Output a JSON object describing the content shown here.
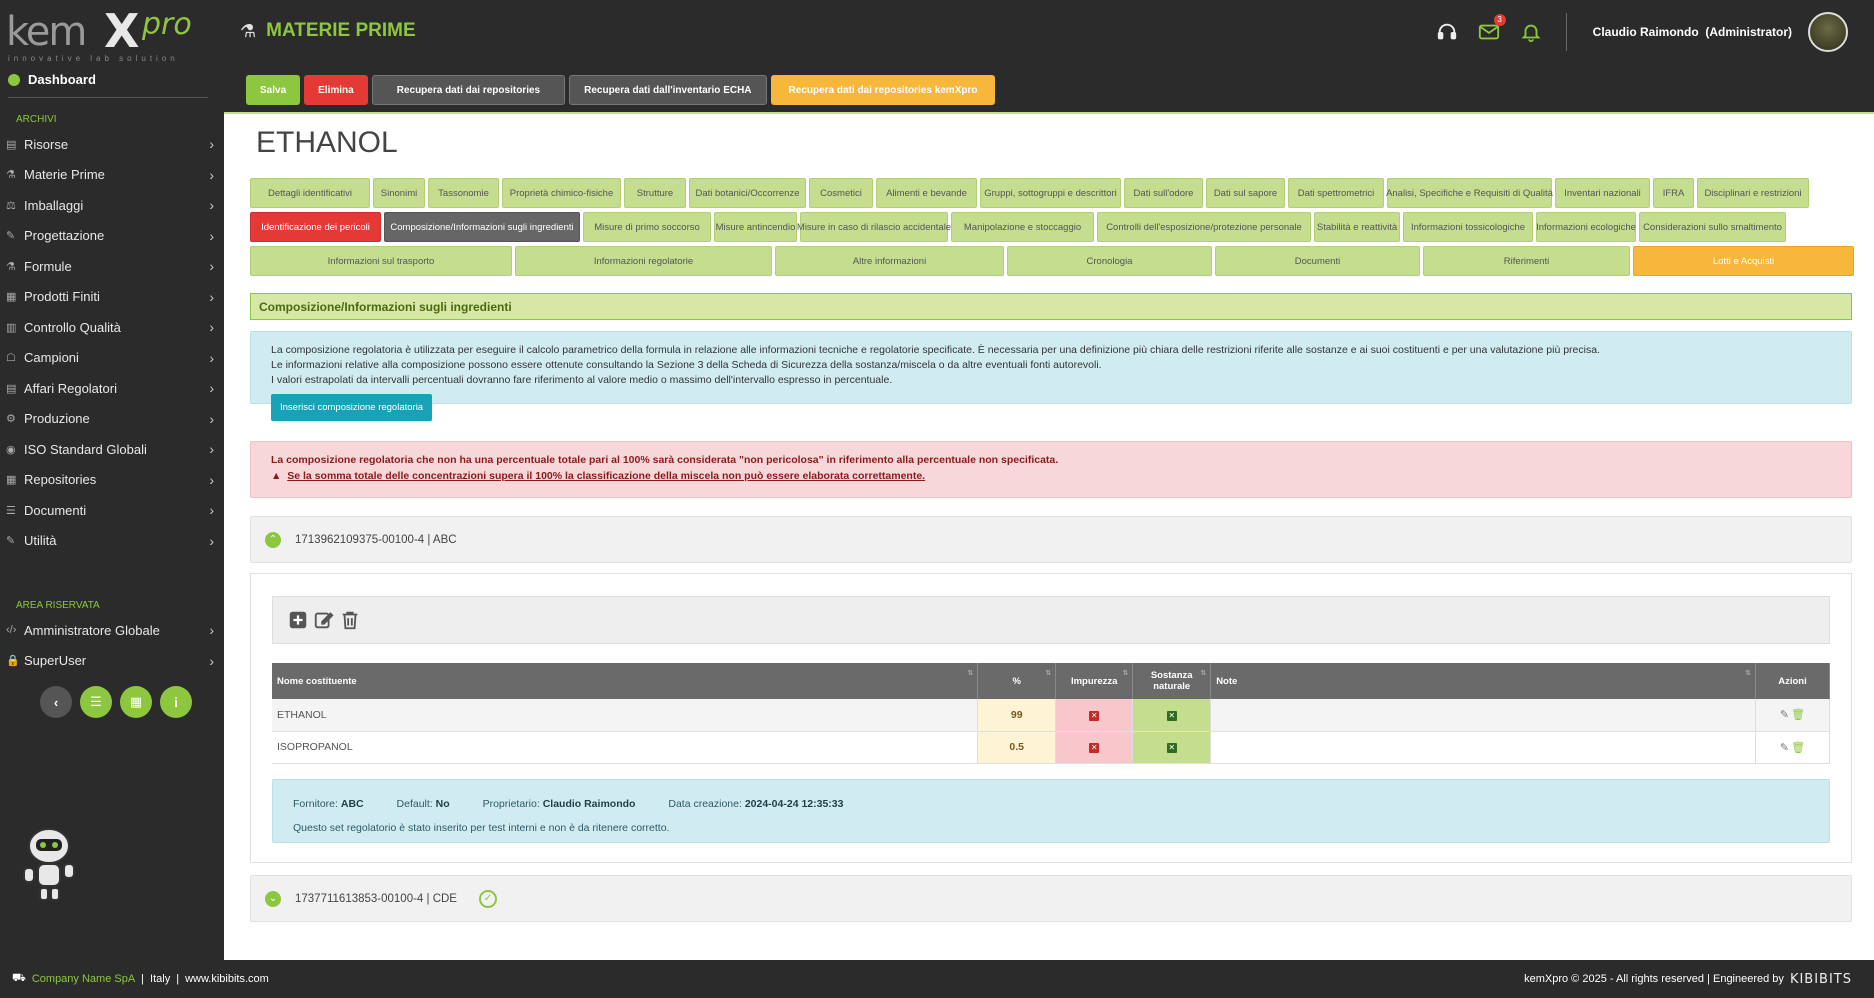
{
  "header": {
    "logo_main": "kem",
    "logo_x": "X",
    "logo_pro": "pro",
    "logo_tagline": "innovative lab solution",
    "page_title": "MATERIE PRIME",
    "mail_badge": "3",
    "user_name": "Claudio Raimondo",
    "user_role": "(Administrator)"
  },
  "sidebar": {
    "dashboard": "Dashboard",
    "section_archivi": "ARCHIVI",
    "items": [
      {
        "label": "Risorse",
        "icon": "resources-icon"
      },
      {
        "label": "Materie Prime",
        "icon": "flask-icon"
      },
      {
        "label": "Imballaggi",
        "icon": "package-icon"
      },
      {
        "label": "Progettazione",
        "icon": "design-icon"
      },
      {
        "label": "Formule",
        "icon": "formula-icon"
      },
      {
        "label": "Prodotti Finiti",
        "icon": "product-icon"
      },
      {
        "label": "Controllo Qualità",
        "icon": "quality-icon"
      },
      {
        "label": "Campioni",
        "icon": "samples-icon"
      },
      {
        "label": "Affari Regolatori",
        "icon": "regulatory-icon"
      },
      {
        "label": "Produzione",
        "icon": "production-icon"
      },
      {
        "label": "ISO Standard Globali",
        "icon": "globe-icon"
      },
      {
        "label": "Repositories",
        "icon": "repository-icon"
      },
      {
        "label": "Documenti",
        "icon": "documents-icon"
      },
      {
        "label": "Utilità",
        "icon": "wrench-icon"
      }
    ],
    "section_reserved": "AREA RISERVATA",
    "reserved_items": [
      {
        "label": "Amministratore Globale",
        "icon": "code-icon"
      },
      {
        "label": "SuperUser",
        "icon": "lock-icon"
      }
    ]
  },
  "actions": {
    "save": "Salva",
    "delete": "Elimina",
    "fetch_repos": "Recupera dati dai repositories",
    "fetch_echa": "Recupera dati dall'inventario ECHA",
    "fetch_kemxpro": "Recupera dati dai repositories kemXpro"
  },
  "substance_title": "ETHANOL",
  "tabs_row1": [
    "Dettagli identificativi",
    "Sinonimi",
    "Tassonomie",
    "Proprietà chimico-fisiche",
    "Strutture",
    "Dati botanici/Occorrenze",
    "Cosmetici",
    "Alimenti e bevande",
    "Gruppi, sottogruppi e descrittori",
    "Dati sull'odore",
    "Dati sul sapore",
    "Dati spettrometrici",
    "Analisi, Specifiche e Requisiti di Qualità",
    "Inventari nazionali",
    "IFRA",
    "Disciplinari e restrizioni"
  ],
  "tabs_row2": [
    "Identificazione dei pericoli",
    "Composizione/Informazioni sugli ingredienti",
    "Misure di primo soccorso",
    "Misure antincendio",
    "Misure in caso di rilascio accidentale",
    "Manipolazione e stoccaggio",
    "Controlli dell'esposizione/protezione personale",
    "Stabilità e reattività",
    "Informazioni tossicologiche",
    "Informazioni ecologiche",
    "Considerazioni sullo smaltimento"
  ],
  "tabs_row3": [
    "Informazioni sul trasporto",
    "Informazioni regolatorie",
    "Altre informazioni",
    "Cronologia",
    "Documenti",
    "Riferimenti",
    "Lotti e Acquisti"
  ],
  "section_title": "Composizione/Informazioni sugli ingredienti",
  "info": {
    "line1": "La composizione regolatoria è utilizzata per eseguire il calcolo parametrico della formula in relazione alle informazioni tecniche e regolatorie specificate. È necessaria per una definizione più chiara delle restrizioni riferite alle sostanze e ai suoi costituenti e per una valutazione più precisa.",
    "line2": "Le informazioni relative alla composizione possono essere ottenute consultando la Sezione 3 della Scheda di Sicurezza della sostanza/miscela o da altre eventuali fonti autorevoli.",
    "line3": "I valori estrapolati da intervalli percentuali dovranno fare riferimento al valore medio o massimo dell'intervallo espresso in percentuale.",
    "button": "Inserisci composizione regolatoria"
  },
  "warning": {
    "line1": "La composizione regolatoria che non ha una percentuale totale pari al 100% sarà considerata \"non pericolosa\" in riferimento alla percentuale non specificata.",
    "line2": "Se la somma totale delle concentrazioni supera il 100% la classificazione della miscela non può essere elaborata correttamente."
  },
  "composition_sets": [
    {
      "title": "1713962109375-00100-4 | ABC",
      "expanded": true
    },
    {
      "title": "1737711613853-00100-4 | CDE",
      "expanded": false,
      "default": true
    }
  ],
  "table": {
    "headers": {
      "name": "Nome costituente",
      "pct": "%",
      "impurity": "Impurezza",
      "natural": "Sostanza naturale",
      "notes": "Note",
      "actions": "Azioni"
    },
    "rows": [
      {
        "name": "ETHANOL",
        "pct": "99",
        "impurity": false,
        "natural": true,
        "notes": ""
      },
      {
        "name": "ISOPROPANOL",
        "pct": "0.5",
        "impurity": false,
        "natural": true,
        "notes": ""
      }
    ]
  },
  "meta": {
    "supplier_label": "Fornitore:",
    "supplier": "ABC",
    "default_label": "Default:",
    "default": "No",
    "owner_label": "Proprietario:",
    "owner": "Claudio Raimondo",
    "created_label": "Data creazione:",
    "created": "2024-04-24 12:35:33",
    "note": "Questo set regolatorio è stato inserito per test interni e non è da ritenere corretto."
  },
  "footer": {
    "company": "Company Name SpA",
    "country": "Italy",
    "site": "www.kibibits.com",
    "copyright": "kemXpro © 2025 - All rights reserved | Engineered by",
    "brand": "KIBIBITS"
  },
  "colors": {
    "accent": "#8dc63f",
    "danger": "#e53935",
    "warning": "#f7b73a",
    "info": "#17a2b8",
    "dark": "#2b2b2b"
  }
}
